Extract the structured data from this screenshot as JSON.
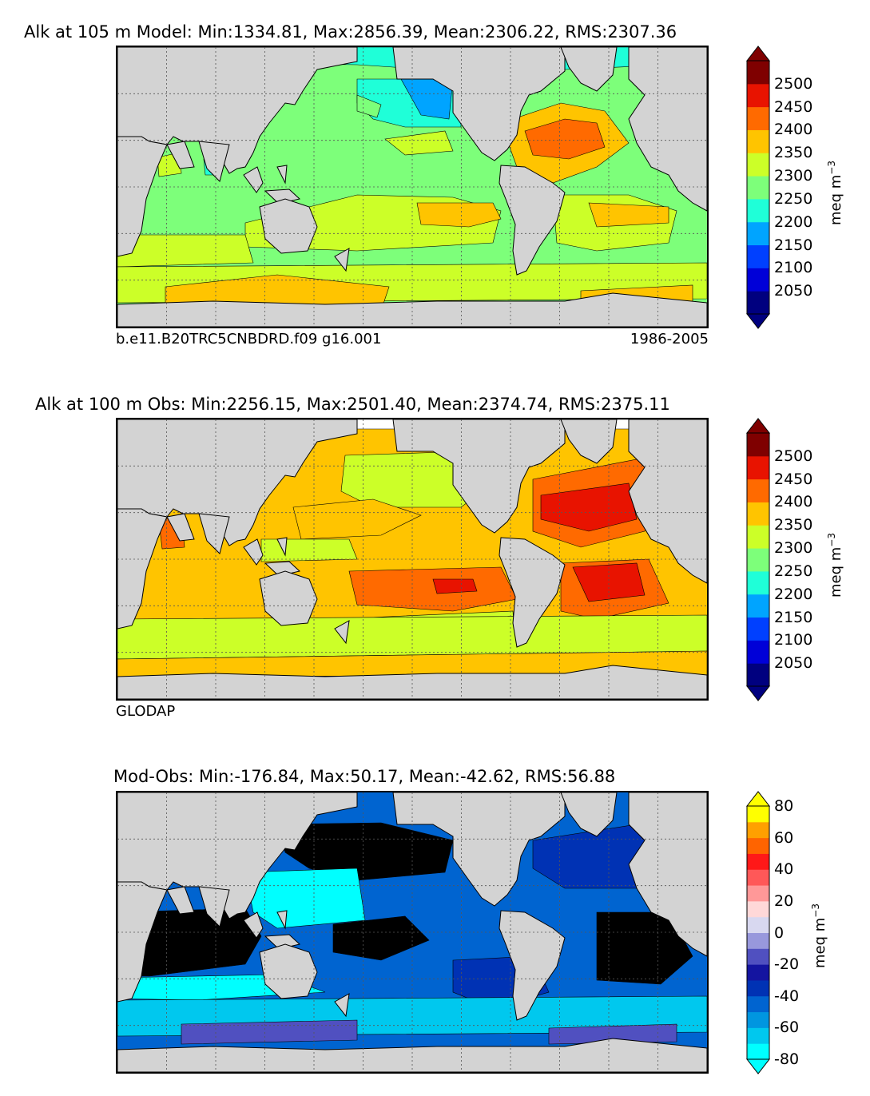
{
  "chart_data": [
    {
      "type": "heatmap",
      "title": "Alk at 105 m Model: Min:1334.81, Max:2856.39, Mean:2306.22, RMS:2307.36",
      "subtitle_left": "b.e11.B20TRC5CNBDRD.f09 g16.001",
      "subtitle_right": "1986-2005",
      "stats": {
        "min": 1334.81,
        "max": 2856.39,
        "mean": 2306.22,
        "rms": 2307.36
      },
      "colorbar": {
        "label": "meq m",
        "label_exp": "−3",
        "ticks": [
          "2050",
          "2100",
          "2150",
          "2200",
          "2250",
          "2300",
          "2350",
          "2400",
          "2450",
          "2500"
        ],
        "extend": "both",
        "levels": [
          2000,
          2050,
          2100,
          2150,
          2200,
          2250,
          2300,
          2350,
          2400,
          2450,
          2500,
          2550
        ],
        "colors": [
          "#00007f",
          "#0000d8",
          "#0040ff",
          "#00a4ff",
          "#1fffd8",
          "#7dff7a",
          "#ccff28",
          "#ffc400",
          "#ff6a00",
          "#e81300",
          "#7f0000"
        ]
      }
    },
    {
      "type": "heatmap",
      "title": "Alk at 100 m Obs: Min:2256.15, Max:2501.40, Mean:2374.74, RMS:2375.11",
      "subtitle_left": "GLODAP",
      "stats": {
        "min": 2256.15,
        "max": 2501.4,
        "mean": 2374.74,
        "rms": 2375.11
      },
      "colorbar": {
        "label": "meq m",
        "label_exp": "−3",
        "ticks": [
          "2050",
          "2100",
          "2150",
          "2200",
          "2250",
          "2300",
          "2350",
          "2400",
          "2450",
          "2500"
        ],
        "extend": "both",
        "levels": [
          2000,
          2050,
          2100,
          2150,
          2200,
          2250,
          2300,
          2350,
          2400,
          2450,
          2500,
          2550
        ],
        "colors": [
          "#00007f",
          "#0000d8",
          "#0040ff",
          "#00a4ff",
          "#1fffd8",
          "#7dff7a",
          "#ccff28",
          "#ffc400",
          "#ff6a00",
          "#e81300",
          "#7f0000"
        ]
      }
    },
    {
      "type": "heatmap",
      "title": "Mod-Obs: Min:-176.84, Max:50.17, Mean:-42.62, RMS:56.88",
      "stats": {
        "min": -176.84,
        "max": 50.17,
        "mean": -42.62,
        "rms": 56.88
      },
      "colorbar": {
        "label": "meq m",
        "label_exp": "−3",
        "ticks": [
          "-80",
          "-60",
          "-40",
          "-20",
          "0",
          "20",
          "40",
          "60",
          "80"
        ],
        "extend": "both",
        "levels": [
          -80,
          -70,
          -60,
          -50,
          -40,
          -30,
          -20,
          -10,
          0,
          10,
          20,
          30,
          40,
          50,
          60,
          70,
          80
        ],
        "colors": [
          "#00ffff",
          "#00c8ee",
          "#0096e0",
          "#0064d0",
          "#0032b4",
          "#1414a0",
          "#5050c0",
          "#9898dc",
          "#d8d8f0",
          "#ffd8d8",
          "#ff9898",
          "#ff5858",
          "#ff1818",
          "#ff6400",
          "#ffa000",
          "#ffff00"
        ]
      }
    }
  ],
  "colors": {
    "land": "#d3d3d3",
    "missing": "#ffffff",
    "below_range": "#000000",
    "model_ocean_base": "#7dff7a",
    "obs_ocean_base": "#ffc400",
    "diff_ocean_base": "#00a4ff"
  }
}
